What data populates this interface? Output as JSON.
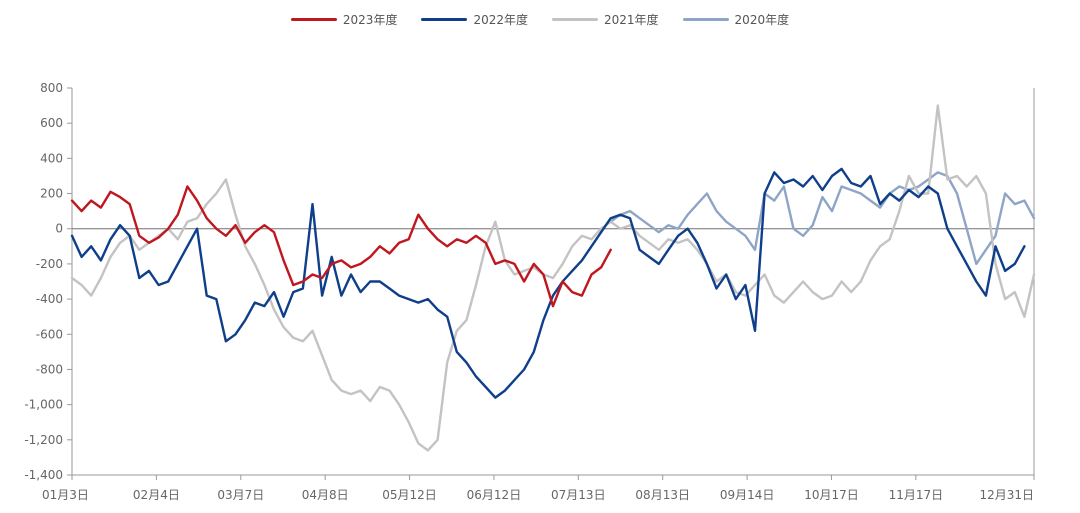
{
  "chart_data": {
    "type": "line",
    "title": "",
    "xlabel": "",
    "ylabel": "",
    "x_tick_labels": [
      "01月3日",
      "02月4日",
      "03月7日",
      "04月8日",
      "05月12日",
      "06月12日",
      "07月13日",
      "08月13日",
      "09月14日",
      "10月17日",
      "11月17日",
      "12月31日"
    ],
    "y_tick_labels": [
      "800",
      "600",
      "400",
      "200",
      "0",
      "-200",
      "-400",
      "-600",
      "-800",
      "-1,000",
      "-1,200",
      "-1,400"
    ],
    "ylim": [
      -1400,
      800
    ],
    "x_domain": [
      0,
      100
    ],
    "grid": false,
    "legend_position": "top-center",
    "series": [
      {
        "name": "2023年度",
        "color": "#c0161e",
        "points": [
          [
            0,
            160
          ],
          [
            1,
            100
          ],
          [
            2,
            160
          ],
          [
            3,
            120
          ],
          [
            4,
            210
          ],
          [
            5,
            180
          ],
          [
            6,
            140
          ],
          [
            7,
            -40
          ],
          [
            8,
            -80
          ],
          [
            9,
            -50
          ],
          [
            10,
            0
          ],
          [
            11,
            80
          ],
          [
            12,
            240
          ],
          [
            13,
            160
          ],
          [
            14,
            60
          ],
          [
            15,
            0
          ],
          [
            16,
            -40
          ],
          [
            17,
            20
          ],
          [
            18,
            -80
          ],
          [
            19,
            -20
          ],
          [
            20,
            20
          ],
          [
            21,
            -20
          ],
          [
            22,
            -180
          ],
          [
            23,
            -320
          ],
          [
            24,
            -300
          ],
          [
            25,
            -260
          ],
          [
            26,
            -280
          ],
          [
            27,
            -200
          ],
          [
            28,
            -180
          ],
          [
            29,
            -220
          ],
          [
            30,
            -200
          ],
          [
            31,
            -160
          ],
          [
            32,
            -100
          ],
          [
            33,
            -140
          ],
          [
            34,
            -80
          ],
          [
            35,
            -60
          ],
          [
            36,
            80
          ],
          [
            37,
            0
          ],
          [
            38,
            -60
          ],
          [
            39,
            -100
          ],
          [
            40,
            -60
          ],
          [
            41,
            -80
          ],
          [
            42,
            -40
          ],
          [
            43,
            -80
          ],
          [
            44,
            -200
          ],
          [
            45,
            -180
          ],
          [
            46,
            -200
          ],
          [
            47,
            -300
          ],
          [
            48,
            -200
          ],
          [
            49,
            -260
          ],
          [
            50,
            -440
          ],
          [
            51,
            -300
          ],
          [
            52,
            -360
          ],
          [
            53,
            -380
          ],
          [
            54,
            -260
          ],
          [
            55,
            -220
          ],
          [
            56,
            -120
          ]
        ]
      },
      {
        "name": "2022年度",
        "color": "#0f3f8a",
        "points": [
          [
            0,
            -40
          ],
          [
            1,
            -160
          ],
          [
            2,
            -100
          ],
          [
            3,
            -180
          ],
          [
            4,
            -60
          ],
          [
            5,
            20
          ],
          [
            6,
            -40
          ],
          [
            7,
            -280
          ],
          [
            8,
            -240
          ],
          [
            9,
            -320
          ],
          [
            10,
            -300
          ],
          [
            11,
            -200
          ],
          [
            12,
            -100
          ],
          [
            13,
            0
          ],
          [
            14,
            -380
          ],
          [
            15,
            -400
          ],
          [
            16,
            -640
          ],
          [
            17,
            -600
          ],
          [
            18,
            -520
          ],
          [
            19,
            -420
          ],
          [
            20,
            -440
          ],
          [
            21,
            -360
          ],
          [
            22,
            -500
          ],
          [
            23,
            -360
          ],
          [
            24,
            -340
          ],
          [
            25,
            140
          ],
          [
            26,
            -380
          ],
          [
            27,
            -160
          ],
          [
            28,
            -380
          ],
          [
            29,
            -260
          ],
          [
            30,
            -360
          ],
          [
            31,
            -300
          ],
          [
            32,
            -300
          ],
          [
            33,
            -340
          ],
          [
            34,
            -380
          ],
          [
            35,
            -400
          ],
          [
            36,
            -420
          ],
          [
            37,
            -400
          ],
          [
            38,
            -460
          ],
          [
            39,
            -500
          ],
          [
            40,
            -700
          ],
          [
            41,
            -760
          ],
          [
            42,
            -840
          ],
          [
            43,
            -900
          ],
          [
            44,
            -960
          ],
          [
            45,
            -920
          ],
          [
            46,
            -860
          ],
          [
            47,
            -800
          ],
          [
            48,
            -700
          ],
          [
            49,
            -520
          ],
          [
            50,
            -380
          ],
          [
            51,
            -300
          ],
          [
            52,
            -240
          ],
          [
            53,
            -180
          ],
          [
            54,
            -100
          ],
          [
            55,
            -20
          ],
          [
            56,
            60
          ],
          [
            57,
            80
          ],
          [
            58,
            60
          ],
          [
            59,
            -120
          ],
          [
            60,
            -160
          ],
          [
            61,
            -200
          ],
          [
            62,
            -120
          ],
          [
            63,
            -40
          ],
          [
            64,
            0
          ],
          [
            65,
            -80
          ],
          [
            66,
            -200
          ],
          [
            67,
            -340
          ],
          [
            68,
            -260
          ],
          [
            69,
            -400
          ],
          [
            70,
            -320
          ],
          [
            71,
            -580
          ],
          [
            72,
            200
          ],
          [
            73,
            320
          ],
          [
            74,
            260
          ],
          [
            75,
            280
          ],
          [
            76,
            240
          ],
          [
            77,
            300
          ],
          [
            78,
            220
          ],
          [
            79,
            300
          ],
          [
            80,
            340
          ],
          [
            81,
            260
          ],
          [
            82,
            240
          ],
          [
            83,
            300
          ],
          [
            84,
            140
          ],
          [
            85,
            200
          ],
          [
            86,
            160
          ],
          [
            87,
            220
          ],
          [
            88,
            180
          ],
          [
            89,
            240
          ],
          [
            90,
            200
          ],
          [
            91,
            0
          ],
          [
            92,
            -100
          ],
          [
            93,
            -200
          ],
          [
            94,
            -300
          ],
          [
            95,
            -380
          ],
          [
            96,
            -100
          ],
          [
            97,
            -240
          ],
          [
            98,
            -200
          ],
          [
            99,
            -100
          ]
        ]
      },
      {
        "name": "2021年度",
        "color": "#c3c3c3",
        "points": [
          [
            0,
            -280
          ],
          [
            1,
            -320
          ],
          [
            2,
            -380
          ],
          [
            3,
            -280
          ],
          [
            4,
            -160
          ],
          [
            5,
            -80
          ],
          [
            6,
            -40
          ],
          [
            7,
            -120
          ],
          [
            8,
            -80
          ],
          [
            9,
            -40
          ],
          [
            10,
            0
          ],
          [
            11,
            -60
          ],
          [
            12,
            40
          ],
          [
            13,
            60
          ],
          [
            14,
            140
          ],
          [
            15,
            200
          ],
          [
            16,
            280
          ],
          [
            17,
            80
          ],
          [
            18,
            -100
          ],
          [
            19,
            -200
          ],
          [
            20,
            -320
          ],
          [
            21,
            -460
          ],
          [
            22,
            -560
          ],
          [
            23,
            -620
          ],
          [
            24,
            -640
          ],
          [
            25,
            -580
          ],
          [
            26,
            -720
          ],
          [
            27,
            -860
          ],
          [
            28,
            -920
          ],
          [
            29,
            -940
          ],
          [
            30,
            -920
          ],
          [
            31,
            -980
          ],
          [
            32,
            -900
          ],
          [
            33,
            -920
          ],
          [
            34,
            -1000
          ],
          [
            35,
            -1100
          ],
          [
            36,
            -1220
          ],
          [
            37,
            -1260
          ],
          [
            38,
            -1200
          ],
          [
            39,
            -760
          ],
          [
            40,
            -580
          ],
          [
            41,
            -520
          ],
          [
            42,
            -320
          ],
          [
            43,
            -100
          ],
          [
            44,
            40
          ],
          [
            45,
            -180
          ],
          [
            46,
            -260
          ],
          [
            47,
            -240
          ],
          [
            48,
            -220
          ],
          [
            49,
            -260
          ],
          [
            50,
            -280
          ],
          [
            51,
            -200
          ],
          [
            52,
            -100
          ],
          [
            53,
            -40
          ],
          [
            54,
            -60
          ],
          [
            55,
            0
          ],
          [
            56,
            40
          ],
          [
            57,
            0
          ],
          [
            58,
            20
          ],
          [
            59,
            -40
          ],
          [
            60,
            -80
          ],
          [
            61,
            -120
          ],
          [
            62,
            -60
          ],
          [
            63,
            -80
          ],
          [
            64,
            -60
          ],
          [
            65,
            -120
          ],
          [
            66,
            -200
          ],
          [
            67,
            -300
          ],
          [
            68,
            -260
          ],
          [
            69,
            -360
          ],
          [
            70,
            -380
          ],
          [
            71,
            -320
          ],
          [
            72,
            -260
          ],
          [
            73,
            -380
          ],
          [
            74,
            -420
          ],
          [
            75,
            -360
          ],
          [
            76,
            -300
          ],
          [
            77,
            -360
          ],
          [
            78,
            -400
          ],
          [
            79,
            -380
          ],
          [
            80,
            -300
          ],
          [
            81,
            -360
          ],
          [
            82,
            -300
          ],
          [
            83,
            -180
          ],
          [
            84,
            -100
          ],
          [
            85,
            -60
          ],
          [
            86,
            100
          ],
          [
            87,
            300
          ],
          [
            88,
            200
          ],
          [
            89,
            200
          ],
          [
            90,
            700
          ],
          [
            91,
            280
          ],
          [
            92,
            300
          ],
          [
            93,
            240
          ],
          [
            94,
            300
          ],
          [
            95,
            200
          ],
          [
            96,
            -200
          ],
          [
            97,
            -400
          ],
          [
            98,
            -360
          ],
          [
            99,
            -500
          ],
          [
            100,
            -260
          ]
        ]
      },
      {
        "name": "2020年度",
        "color": "#8fa5c7",
        "points": [
          [
            56,
            40
          ],
          [
            57,
            80
          ],
          [
            58,
            100
          ],
          [
            59,
            60
          ],
          [
            60,
            20
          ],
          [
            61,
            -20
          ],
          [
            62,
            20
          ],
          [
            63,
            0
          ],
          [
            64,
            80
          ],
          [
            65,
            140
          ],
          [
            66,
            200
          ],
          [
            67,
            100
          ],
          [
            68,
            40
          ],
          [
            69,
            0
          ],
          [
            70,
            -40
          ],
          [
            71,
            -120
          ],
          [
            72,
            200
          ],
          [
            73,
            160
          ],
          [
            74,
            240
          ],
          [
            75,
            0
          ],
          [
            76,
            -40
          ],
          [
            77,
            20
          ],
          [
            78,
            180
          ],
          [
            79,
            100
          ],
          [
            80,
            240
          ],
          [
            81,
            220
          ],
          [
            82,
            200
          ],
          [
            83,
            160
          ],
          [
            84,
            120
          ],
          [
            85,
            200
          ],
          [
            86,
            240
          ],
          [
            87,
            220
          ],
          [
            88,
            240
          ],
          [
            89,
            280
          ],
          [
            90,
            320
          ],
          [
            91,
            300
          ],
          [
            92,
            200
          ],
          [
            93,
            0
          ],
          [
            94,
            -200
          ],
          [
            95,
            -120
          ],
          [
            96,
            -40
          ],
          [
            97,
            200
          ],
          [
            98,
            140
          ],
          [
            99,
            160
          ],
          [
            100,
            60
          ]
        ]
      }
    ]
  }
}
